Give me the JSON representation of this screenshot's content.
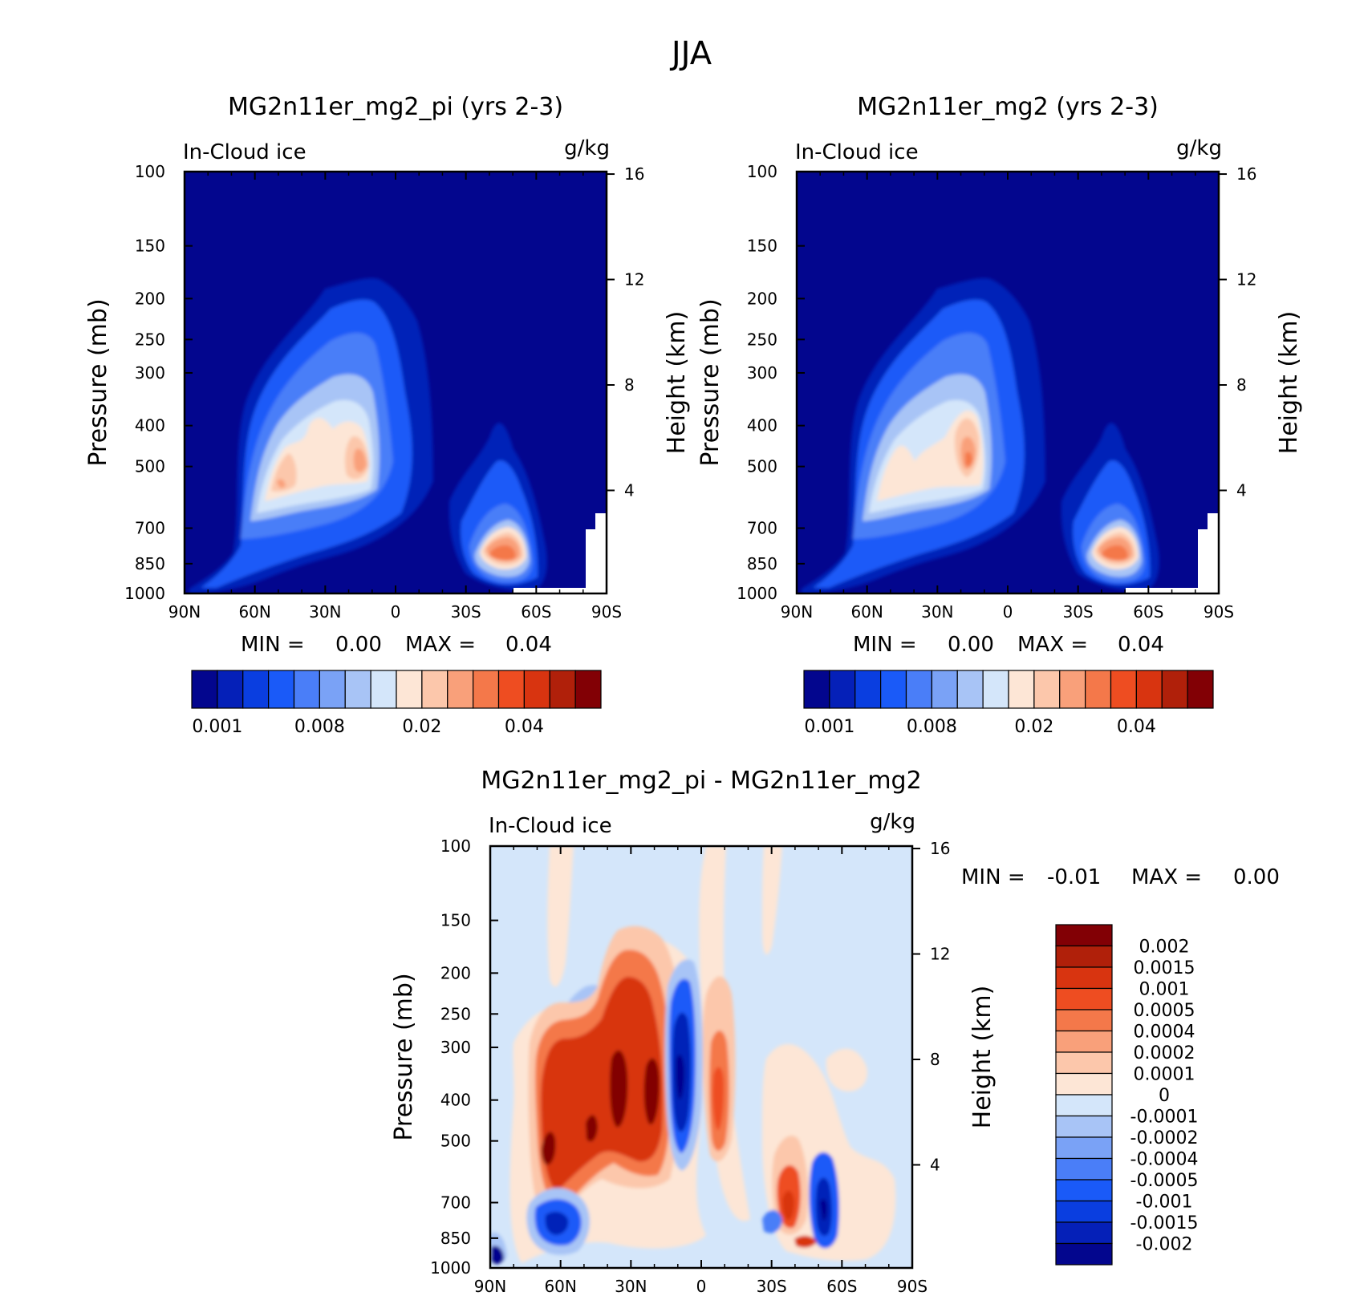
{
  "main_title": "JJA",
  "panels": {
    "top_left": {
      "title": "MG2n11er_mg2_pi (yrs 2-3)",
      "variable": "In-Cloud ice",
      "units": "g/kg",
      "ylabel": "Pressure (mb)",
      "ylabel_right": "Height (km)",
      "min_text": "MIN =",
      "min_value": "0.00",
      "max_text": "MAX =",
      "max_value": "0.04"
    },
    "top_right": {
      "title": "MG2n11er_mg2 (yrs 2-3)",
      "variable": "In-Cloud ice",
      "units": "g/kg",
      "ylabel": "Pressure (mb)",
      "ylabel_right": "Height (km)",
      "min_text": "MIN =",
      "min_value": "0.00",
      "max_text": "MAX =",
      "max_value": "0.04"
    },
    "bottom": {
      "title": "MG2n11er_mg2_pi - MG2n11er_mg2",
      "variable": "In-Cloud ice",
      "units": "g/kg",
      "ylabel": "Pressure (mb)",
      "ylabel_right": "Height (km)",
      "min_text": "MIN =",
      "min_value": "-0.01",
      "max_text": "MAX =",
      "max_value": "0.00"
    }
  },
  "axes": {
    "x_ticks": [
      "90N",
      "60N",
      "30N",
      "0",
      "30S",
      "60S",
      "90S"
    ],
    "x_tick_values": [
      90,
      60,
      30,
      0,
      -30,
      -60,
      -90
    ],
    "y_ticks": [
      "100",
      "150",
      "200",
      "250",
      "300",
      "400",
      "500",
      "700",
      "850",
      "1000"
    ],
    "y_tick_values": [
      100,
      150,
      200,
      250,
      300,
      400,
      500,
      700,
      850,
      1000
    ],
    "y_scale": "log",
    "y_range": [
      1000,
      100
    ],
    "height_ticks": [
      "16",
      "12",
      "8",
      "4"
    ],
    "height_tick_values": [
      16,
      12,
      8,
      4
    ]
  },
  "colorbar_top": {
    "colors": [
      "#03068e",
      "#0520b8",
      "#0a3ee0",
      "#1a5af8",
      "#4a7ef8",
      "#7aa2f6",
      "#a8c4f6",
      "#d4e6fa",
      "#fde6d6",
      "#fcc7ab",
      "#f9a07a",
      "#f4784a",
      "#ee4d21",
      "#d83410",
      "#b0200a",
      "#820005"
    ],
    "labels": [
      "0.001",
      "0.008",
      "0.02",
      "0.04"
    ]
  },
  "colorbar_diff": {
    "colors": [
      "#820005",
      "#b0200a",
      "#d83410",
      "#ee4d21",
      "#f4784a",
      "#f9a07a",
      "#fcc7ab",
      "#fde6d6",
      "#d4e6fa",
      "#a8c4f6",
      "#7aa2f6",
      "#4a7ef8",
      "#1a5af8",
      "#0a3ee0",
      "#0520b8",
      "#03068e"
    ],
    "labels": [
      "0.002",
      "0.0015",
      "0.001",
      "0.0005",
      "0.0004",
      "0.0002",
      "0.0001",
      "0",
      "-0.0001",
      "-0.0002",
      "-0.0004",
      "-0.0005",
      "-0.001",
      "-0.0015",
      "-0.002"
    ]
  },
  "chart_data": [
    {
      "type": "heatmap",
      "title": "MG2n11er_mg2_pi (yrs 2-3)",
      "subtitle": "In-Cloud ice",
      "units": "g/kg",
      "xlabel": "",
      "ylabel": "Pressure (mb)",
      "ylabel_right": "Height (km)",
      "xlim": [
        90,
        -90
      ],
      "ylim": [
        1000,
        100
      ],
      "min": 0.0,
      "max": 0.04,
      "features": [
        {
          "lat": 46,
          "p": 540,
          "value": 0.015
        },
        {
          "lat": 12,
          "p": 500,
          "value": 0.02
        },
        {
          "lat": -50,
          "p": 830,
          "value": 0.03
        }
      ]
    },
    {
      "type": "heatmap",
      "title": "MG2n11er_mg2 (yrs 2-3)",
      "subtitle": "In-Cloud ice",
      "units": "g/kg",
      "xlabel": "",
      "ylabel": "Pressure (mb)",
      "ylabel_right": "Height (km)",
      "xlim": [
        90,
        -90
      ],
      "ylim": [
        1000,
        100
      ],
      "min": 0.0,
      "max": 0.04,
      "features": [
        {
          "lat": 55,
          "p": 540,
          "value": 0.012
        },
        {
          "lat": 9,
          "p": 500,
          "value": 0.03
        },
        {
          "lat": -50,
          "p": 830,
          "value": 0.03
        }
      ]
    },
    {
      "type": "heatmap",
      "title": "MG2n11er_mg2_pi - MG2n11er_mg2",
      "subtitle": "In-Cloud ice",
      "units": "g/kg",
      "xlabel": "",
      "ylabel": "Pressure (mb)",
      "ylabel_right": "Height (km)",
      "xlim": [
        90,
        -90
      ],
      "ylim": [
        1000,
        100
      ],
      "min": -0.01,
      "max": 0.0,
      "features": [
        {
          "lat": 28,
          "p": 420,
          "value": 0.002
        },
        {
          "lat": 58,
          "p": 520,
          "value": 0.0015
        },
        {
          "lat": 8,
          "p": 430,
          "value": -0.002
        },
        {
          "lat": -40,
          "p": 700,
          "value": 0.001
        },
        {
          "lat": -55,
          "p": 700,
          "value": -0.0015
        },
        {
          "lat": 58,
          "p": 850,
          "value": -0.001
        }
      ]
    }
  ]
}
